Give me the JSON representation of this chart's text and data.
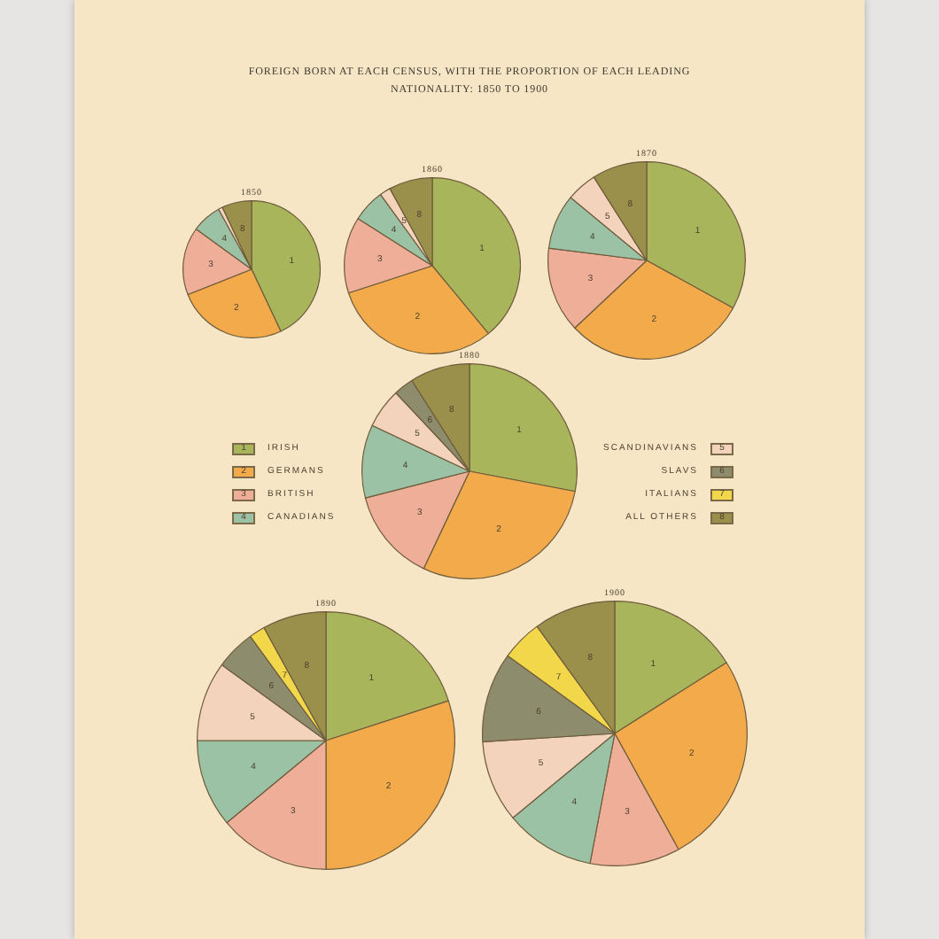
{
  "chart_data": [
    {
      "type": "other",
      "title": "FOREIGN BORN AT EACH CENSUS, WITH THE PROPORTION OF EACH LEADING NATIONALITY: 1850 TO 1900"
    },
    {
      "type": "pie",
      "title": "1850",
      "categories": [
        "1",
        "2",
        "3",
        "4",
        null,
        null,
        null,
        "8"
      ],
      "values": [
        43,
        26,
        16,
        7,
        1,
        null,
        null,
        7
      ],
      "colors": [
        "#a9b55b",
        "#f2aa4a",
        "#eeae98",
        "#9cc2a6",
        "#f3d3bb",
        "#8d8c6c",
        "#f3d74a",
        "#9b8f4c"
      ]
    },
    {
      "type": "pie",
      "title": "1860",
      "categories": [
        "1",
        "2",
        "3",
        "4",
        "5",
        null,
        null,
        "8"
      ],
      "values": [
        39,
        31,
        14,
        6,
        2,
        null,
        null,
        8
      ],
      "colors": [
        "#a9b55b",
        "#f2aa4a",
        "#eeae98",
        "#9cc2a6",
        "#f3d3bb",
        "#8d8c6c",
        "#f3d74a",
        "#9b8f4c"
      ]
    },
    {
      "type": "pie",
      "title": "1870",
      "categories": [
        "1",
        "2",
        "3",
        "4",
        "5",
        null,
        null,
        "8"
      ],
      "values": [
        33,
        30,
        14,
        9,
        5,
        null,
        null,
        9
      ],
      "colors": [
        "#a9b55b",
        "#f2aa4a",
        "#eeae98",
        "#9cc2a6",
        "#f3d3bb",
        "#8d8c6c",
        "#f3d74a",
        "#9b8f4c"
      ]
    },
    {
      "type": "pie",
      "title": "1880",
      "categories": [
        "1",
        "2",
        "3",
        "4",
        "5",
        "6",
        "7",
        "8"
      ],
      "values": [
        28,
        29,
        14,
        11,
        6,
        3,
        null,
        9
      ],
      "colors": [
        "#a9b55b",
        "#f2aa4a",
        "#eeae98",
        "#9cc2a6",
        "#f3d3bb",
        "#8d8c6c",
        "#f3d74a",
        "#9b8f4c"
      ],
      "annotations": [
        "IRISH",
        "GERMANS",
        "BRITISH",
        "CANADIANS",
        "SCANDINAVIANS",
        "SLAVS",
        "ITALIANS",
        "ALL OTHERS"
      ]
    },
    {
      "type": "pie",
      "title": "1890",
      "categories": [
        "1",
        "2",
        "3",
        "4",
        "5",
        "6",
        "7",
        "8"
      ],
      "values": [
        20,
        30,
        14,
        11,
        10,
        5,
        2,
        8
      ],
      "colors": [
        "#a9b55b",
        "#f2aa4a",
        "#eeae98",
        "#9cc2a6",
        "#f3d3bb",
        "#8d8c6c",
        "#f3d74a",
        "#9b8f4c"
      ]
    },
    {
      "type": "pie",
      "title": "1900",
      "categories": [
        "1",
        "2",
        "3",
        "4",
        "5",
        "6",
        "7",
        "8"
      ],
      "values": [
        16,
        26,
        11,
        11,
        10,
        11,
        5,
        10
      ],
      "colors": [
        "#a9b55b",
        "#f2aa4a",
        "#eeae98",
        "#9cc2a6",
        "#f3d3bb",
        "#8d8c6c",
        "#f3d74a",
        "#9b8f4c"
      ]
    }
  ]
}
